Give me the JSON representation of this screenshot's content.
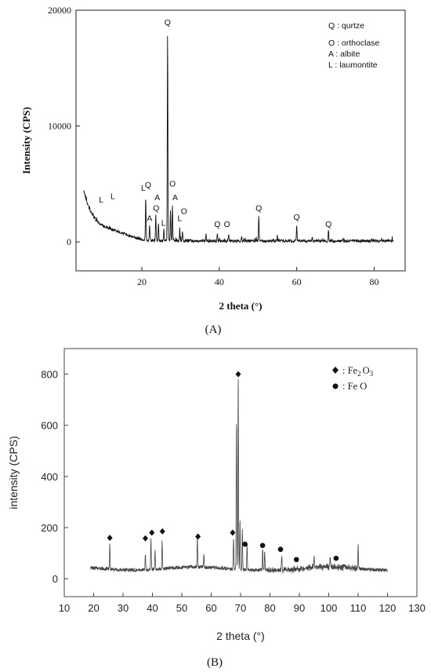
{
  "chart_data": [
    {
      "type": "line",
      "panel_label": "(A)",
      "xlabel": "2 theta (°)",
      "ylabel": "Intensity (CPS)",
      "xlim": [
        3,
        88
      ],
      "ylim": [
        -2500,
        20000
      ],
      "xticks": [
        20,
        40,
        60,
        80
      ],
      "yticks": [
        0,
        10000,
        20000
      ],
      "grid": false,
      "legend_position": "top-right",
      "legend": [
        {
          "symbol": "Q",
          "label": "Q : qurtze"
        },
        {
          "symbol": "O",
          "label": "O : orthoclase"
        },
        {
          "symbol": "A",
          "label": "A : albite"
        },
        {
          "symbol": "L",
          "label": "L : laumontite"
        }
      ],
      "peaks": [
        {
          "x": 21.0,
          "y": 3800
        },
        {
          "x": 22.0,
          "y": 1400
        },
        {
          "x": 23.6,
          "y": 2300
        },
        {
          "x": 24.3,
          "y": 1500
        },
        {
          "x": 25.7,
          "y": 1000
        },
        {
          "x": 26.65,
          "y": 18200
        },
        {
          "x": 27.4,
          "y": 2600
        },
        {
          "x": 27.9,
          "y": 3100
        },
        {
          "x": 29.8,
          "y": 1100
        },
        {
          "x": 30.5,
          "y": 900
        },
        {
          "x": 36.6,
          "y": 600
        },
        {
          "x": 39.5,
          "y": 700
        },
        {
          "x": 42.4,
          "y": 600
        },
        {
          "x": 45.8,
          "y": 400
        },
        {
          "x": 50.2,
          "y": 2200
        },
        {
          "x": 55.0,
          "y": 500
        },
        {
          "x": 60.0,
          "y": 1400
        },
        {
          "x": 64.0,
          "y": 300
        },
        {
          "x": 68.2,
          "y": 1000
        }
      ],
      "annotations": [
        {
          "text": "Q",
          "x": 26.65,
          "y": 18700
        },
        {
          "text": "L",
          "x": 9.5,
          "y": 3400
        },
        {
          "text": "L",
          "x": 12.5,
          "y": 3700
        },
        {
          "text": "L",
          "x": 20.4,
          "y": 4400
        },
        {
          "text": "Q",
          "x": 21.6,
          "y": 4700
        },
        {
          "text": "A",
          "x": 22.0,
          "y": 1800
        },
        {
          "text": "A",
          "x": 24.0,
          "y": 3600
        },
        {
          "text": "Q",
          "x": 23.7,
          "y": 2700
        },
        {
          "text": "L",
          "x": 25.6,
          "y": 1400
        },
        {
          "text": "O",
          "x": 27.9,
          "y": 4800
        },
        {
          "text": "A",
          "x": 28.6,
          "y": 3600
        },
        {
          "text": "O",
          "x": 30.9,
          "y": 2400
        },
        {
          "text": "L",
          "x": 29.8,
          "y": 1800
        },
        {
          "text": "Q",
          "x": 39.5,
          "y": 1300
        },
        {
          "text": "O",
          "x": 42.0,
          "y": 1300
        },
        {
          "text": "Q",
          "x": 50.2,
          "y": 2700
        },
        {
          "text": "Q",
          "x": 60.0,
          "y": 1900
        },
        {
          "text": "Q",
          "x": 68.2,
          "y": 1300
        }
      ]
    },
    {
      "type": "line",
      "panel_label": "(B)",
      "xlabel": "2 theta (°)",
      "ylabel": "intensity (CPS)",
      "xlim": [
        10,
        130
      ],
      "ylim": [
        -70,
        900
      ],
      "xticks": [
        10,
        20,
        30,
        40,
        50,
        60,
        70,
        80,
        90,
        100,
        110,
        120,
        130
      ],
      "yticks": [
        0,
        200,
        400,
        600,
        800
      ],
      "grid": false,
      "legend_position": "top-right",
      "legend": [
        {
          "symbol": "◆",
          "label": "Fe",
          "sub": "2",
          "label2": "O",
          "sub2": "3",
          "prefix": ": "
        },
        {
          "symbol": "●",
          "label": "Fe O",
          "prefix": ": "
        }
      ],
      "peaks": [
        {
          "x": 25.5,
          "y": 100
        },
        {
          "x": 37.6,
          "y": 60
        },
        {
          "x": 39.5,
          "y": 120
        },
        {
          "x": 40.9,
          "y": 75
        },
        {
          "x": 43.3,
          "y": 110
        },
        {
          "x": 55.3,
          "y": 115
        },
        {
          "x": 57.5,
          "y": 50
        },
        {
          "x": 67.6,
          "y": 120
        },
        {
          "x": 68.6,
          "y": 580
        },
        {
          "x": 69.2,
          "y": 760
        },
        {
          "x": 69.8,
          "y": 190
        },
        {
          "x": 70.6,
          "y": 160
        },
        {
          "x": 72.2,
          "y": 100
        },
        {
          "x": 77.5,
          "y": 85
        },
        {
          "x": 78.2,
          "y": 75
        },
        {
          "x": 84.0,
          "y": 55
        },
        {
          "x": 95.0,
          "y": 45
        },
        {
          "x": 100.5,
          "y": 45
        },
        {
          "x": 110.0,
          "y": 95
        }
      ],
      "markers": [
        {
          "symbol": "◆",
          "x": 25.5,
          "y": 160
        },
        {
          "symbol": "◆",
          "x": 37.6,
          "y": 158
        },
        {
          "symbol": "◆",
          "x": 39.8,
          "y": 180
        },
        {
          "symbol": "◆",
          "x": 43.4,
          "y": 185
        },
        {
          "symbol": "◆",
          "x": 55.5,
          "y": 165
        },
        {
          "symbol": "◆",
          "x": 67.3,
          "y": 180
        },
        {
          "symbol": "◆",
          "x": 69.2,
          "y": 800
        },
        {
          "symbol": "●",
          "x": 71.5,
          "y": 135
        },
        {
          "symbol": "●",
          "x": 77.5,
          "y": 130
        },
        {
          "symbol": "●",
          "x": 83.6,
          "y": 115
        },
        {
          "symbol": "●",
          "x": 89.0,
          "y": 75
        },
        {
          "symbol": "●",
          "x": 102.5,
          "y": 80
        }
      ]
    }
  ]
}
